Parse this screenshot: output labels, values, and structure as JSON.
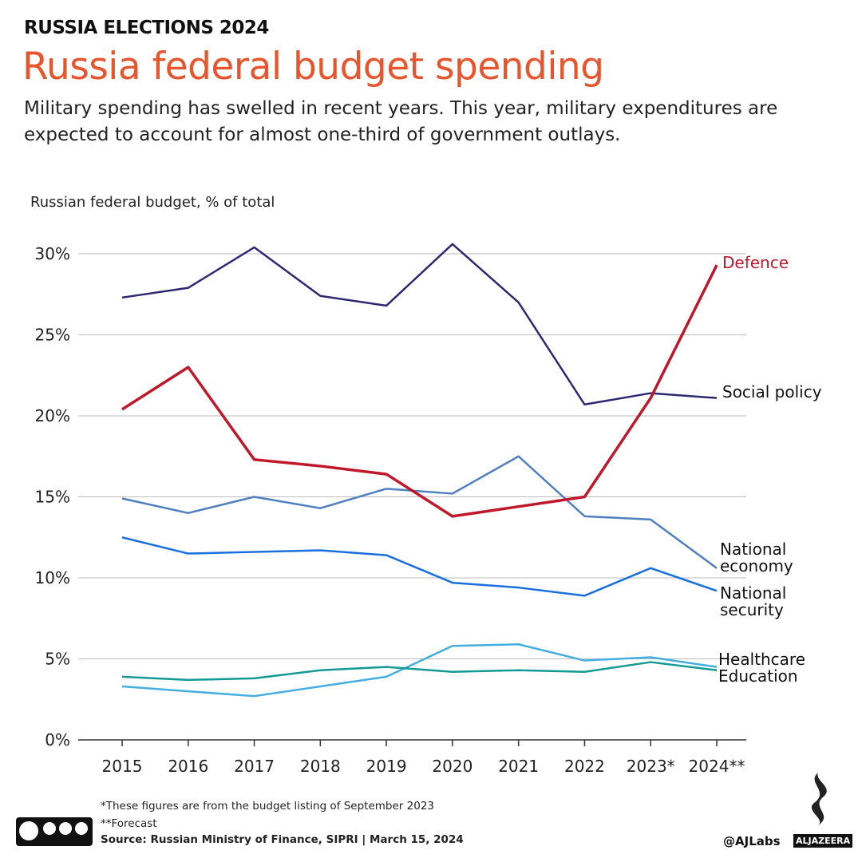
{
  "header": {
    "kicker": "RUSSIA ELECTIONS 2024"
  },
  "chart_data": {
    "type": "line",
    "title": "Russia federal budget spending",
    "subtitle": "Military spending has swelled in recent years. This year, military expenditures are expected to account for almost one-third of government outlays.",
    "y_label": "Russian federal budget, % of total",
    "categories": [
      "2015",
      "2016",
      "2017",
      "2018",
      "2019",
      "2020",
      "2021",
      "2022",
      "2023*",
      "2024**"
    ],
    "ylim": [
      0,
      30
    ],
    "yticks": [
      {
        "value": 0,
        "label": "0%"
      },
      {
        "value": 5,
        "label": "5%"
      },
      {
        "value": 10,
        "label": "10%"
      },
      {
        "value": 15,
        "label": "15%"
      },
      {
        "value": 20,
        "label": "20%"
      },
      {
        "value": 25,
        "label": "25%"
      },
      {
        "value": 30,
        "label": "30%"
      }
    ],
    "grid": true,
    "series": [
      {
        "name": "Social policy",
        "color": "#2d2873",
        "values": [
          27.3,
          27.9,
          30.4,
          27.4,
          26.8,
          30.6,
          27.0,
          20.7,
          21.4,
          21.1
        ]
      },
      {
        "name": "National economy",
        "color": "#4f7fc0",
        "values": [
          14.9,
          14.0,
          15.0,
          14.3,
          15.5,
          15.2,
          17.5,
          13.8,
          13.6,
          10.6
        ]
      },
      {
        "name": "National security",
        "color": "#1a6fe0",
        "values": [
          12.5,
          11.5,
          11.6,
          11.7,
          11.4,
          9.7,
          9.4,
          8.9,
          10.6,
          9.2
        ]
      },
      {
        "name": "Healthcare",
        "color": "#45aee0",
        "values": [
          3.3,
          3.0,
          2.7,
          3.3,
          3.9,
          5.8,
          5.9,
          4.9,
          5.1,
          4.5
        ]
      },
      {
        "name": "Education",
        "color": "#139a95",
        "values": [
          3.9,
          3.7,
          3.8,
          4.3,
          4.5,
          4.2,
          4.3,
          4.2,
          4.8,
          4.3
        ]
      },
      {
        "name": "Defence",
        "color": "#c0182a",
        "values": [
          20.4,
          23.0,
          17.3,
          16.9,
          16.4,
          13.8,
          14.4,
          15.0,
          21.1,
          29.3
        ]
      }
    ]
  },
  "footer": {
    "note1": "*These figures are from the budget listing of September 2023",
    "note2": "**Forecast",
    "source": "Source: Russian Ministry of Finance, SIPRI  |  March 15, 2024",
    "handle": "@AJLabs",
    "brand": "ALJAZEERA"
  }
}
